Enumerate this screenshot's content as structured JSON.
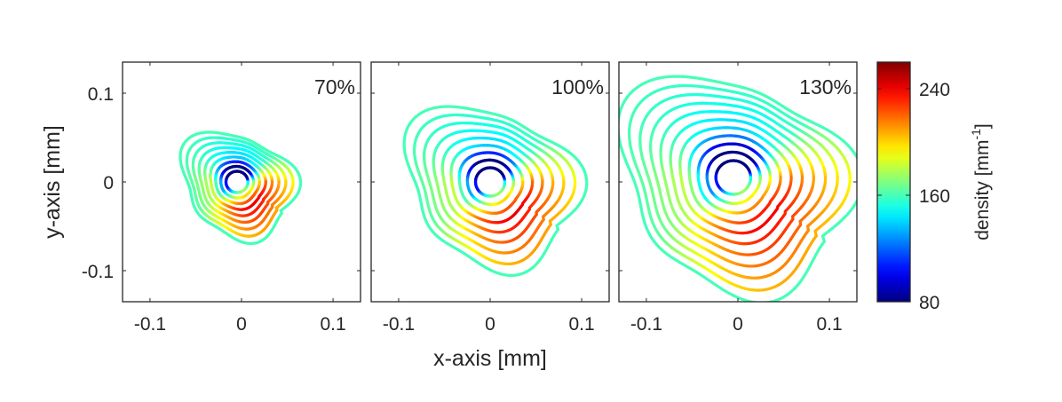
{
  "chart_data": {
    "type": "line",
    "xlabel": "x-axis [mm]",
    "ylabel": "y-axis [mm]",
    "xlim": [
      -0.13,
      0.13
    ],
    "ylim": [
      -0.135,
      0.135
    ],
    "xticks": [
      -0.1,
      0,
      0.1
    ],
    "yticks": [
      -0.1,
      0,
      0.1
    ],
    "xtick_labels": [
      "-0.1",
      "0",
      "0.1"
    ],
    "ytick_labels": [
      "-0.1",
      "0",
      "0.1"
    ],
    "panels": [
      {
        "label": "70%",
        "center": [
          -0.005,
          0.0
        ],
        "r_inner": 0.012,
        "r_outer": 0.058,
        "turns": 9
      },
      {
        "label": "100%",
        "center": [
          0.0,
          0.0
        ],
        "r_inner": 0.016,
        "r_outer": 0.088,
        "turns": 9
      },
      {
        "label": "130%",
        "center": [
          -0.005,
          0.005
        ],
        "r_inner": 0.019,
        "r_outer": 0.118,
        "turns": 11
      }
    ],
    "colorbar": {
      "label": "density [mm-1]",
      "label_main": "density [mm",
      "label_sup": "-1",
      "label_end": "]",
      "min": 80,
      "max": 260,
      "ticks": [
        80,
        160,
        240
      ],
      "tick_labels": [
        "80",
        "160",
        "240"
      ],
      "colormap": "jet"
    }
  }
}
